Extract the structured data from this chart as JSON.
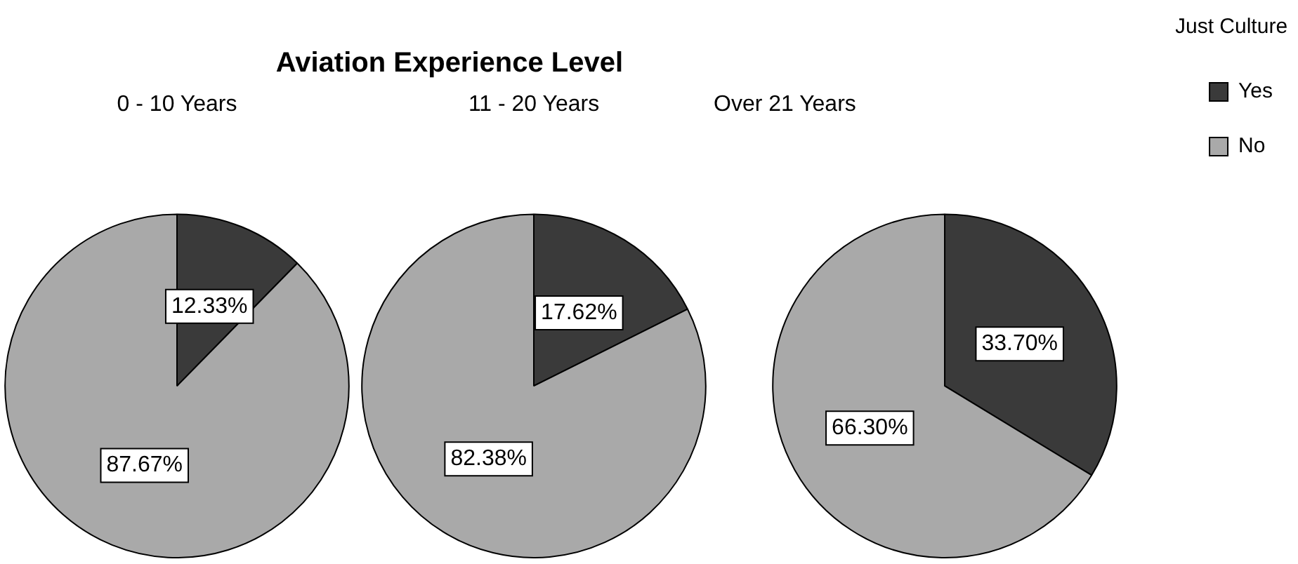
{
  "chart_data": [
    {
      "type": "other",
      "title": "Aviation Experience Level"
    },
    {
      "type": "pie",
      "title": "0 - 10 Years",
      "categories": [
        null,
        null
      ],
      "values": [
        12.33,
        87.67
      ],
      "colors": [
        "#3a3a3a",
        "#a9a9a9"
      ],
      "value_labels": [
        "12.33%",
        "87.67%"
      ]
    },
    {
      "type": "pie",
      "title": "11 - 20 Years",
      "categories": [
        null,
        null
      ],
      "values": [
        17.62,
        82.38
      ],
      "colors": [
        "#3a3a3a",
        "#a9a9a9"
      ],
      "value_labels": [
        "17.62%",
        "82.38%"
      ]
    },
    {
      "type": "pie",
      "title": "Over 21 Years",
      "categories": [
        "Yes",
        "No"
      ],
      "values": [
        33.7,
        66.3
      ],
      "colors": [
        "#3a3a3a",
        "#a9a9a9"
      ],
      "value_labels": [
        "33.70%",
        "66.30%"
      ],
      "legend": "right",
      "legend_title": "Just Culture"
    }
  ]
}
